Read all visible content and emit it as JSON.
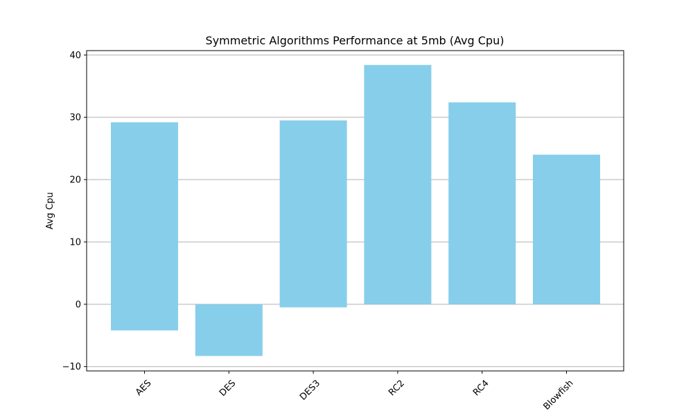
{
  "chart_data": {
    "type": "bar",
    "title": "Symmetric Algorithms Performance at 5mb (Avg Cpu)",
    "xlabel": "",
    "ylabel": "Avg Cpu",
    "categories": [
      "AES",
      "DES",
      "DES3",
      "RC2",
      "RC4",
      "Blowfish"
    ],
    "bars": [
      {
        "bottom": -4.2,
        "top": 29.2
      },
      {
        "bottom": -8.3,
        "top": 0.0
      },
      {
        "bottom": -0.5,
        "top": 29.5
      },
      {
        "bottom": 0.0,
        "top": 38.4
      },
      {
        "bottom": 0.0,
        "top": 32.4
      },
      {
        "bottom": 0.0,
        "top": 24.0
      }
    ],
    "ylim": [
      -10.7,
      40.7
    ],
    "yticks": [
      -10,
      0,
      10,
      20,
      30,
      40
    ],
    "ytick_labels": [
      "−10",
      "0",
      "10",
      "20",
      "30",
      "40"
    ],
    "grid": "y",
    "bar_color": "#87ceeb",
    "grid_color": "#b0b0b0",
    "xtick_rotation": 45
  }
}
